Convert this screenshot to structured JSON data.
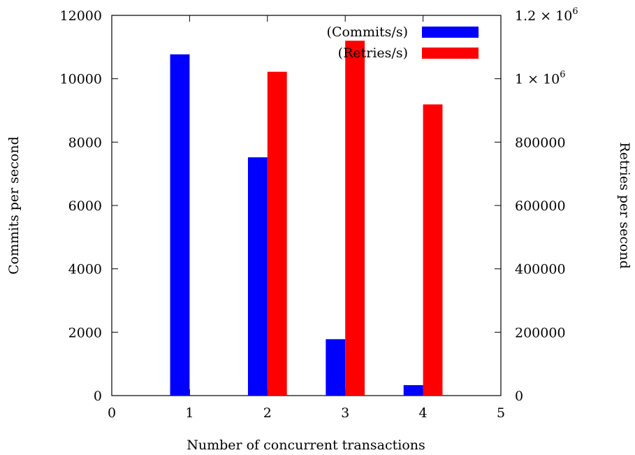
{
  "chart_data": {
    "type": "bar",
    "xlabel": "Number of concurrent transactions",
    "ylabel": "Commits per second",
    "y2label": "Retries per second",
    "xlim": [
      0,
      5
    ],
    "ylim": [
      0,
      12000
    ],
    "y2lim": [
      0,
      1200000
    ],
    "x_ticks": [
      0,
      1,
      2,
      3,
      4,
      5
    ],
    "y_ticks": [
      0,
      2000,
      4000,
      6000,
      8000,
      10000,
      12000
    ],
    "y2_ticks": [
      0,
      200000,
      400000,
      600000,
      800000,
      1000000,
      1200000
    ],
    "y2_tick_labels": [
      "0",
      "200000",
      "400000",
      "600000",
      "800000",
      "1 × 10",
      "1.2 × 10"
    ],
    "y2_tick_exponent": "6",
    "grid": false,
    "legend_position": "top-right",
    "series": [
      {
        "name": "(Commits/s)",
        "axis": "left",
        "color": "#0000ff",
        "x": [
          1,
          2,
          3,
          4
        ],
        "values": [
          10770,
          7520,
          1780,
          330
        ]
      },
      {
        "name": "(Retries/s)",
        "axis": "right",
        "color": "#ff0000",
        "x": [
          1,
          2,
          3,
          4
        ],
        "values": [
          0,
          1022000,
          1120000,
          919000
        ]
      }
    ]
  }
}
